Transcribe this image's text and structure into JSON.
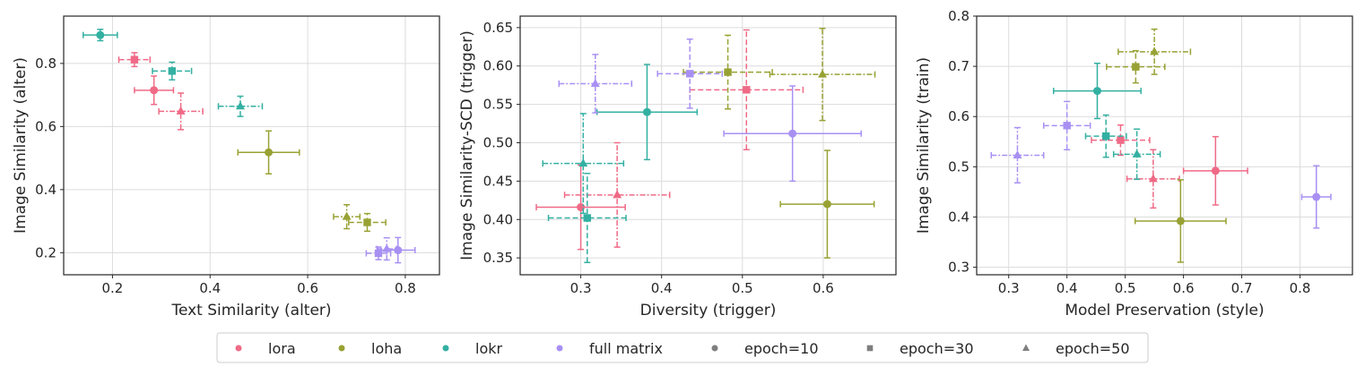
{
  "colors": {
    "lora": "#ef6a86",
    "loha": "#98a234",
    "lokr": "#33b0a2",
    "full matrix": "#a890f3",
    "grid": "#dcdcdc",
    "frame": "#262626",
    "legend_marker": "#7f7f7f"
  },
  "legend": {
    "items": [
      {
        "label": "lora",
        "kind": "method",
        "key": "lora"
      },
      {
        "label": "loha",
        "kind": "method",
        "key": "loha"
      },
      {
        "label": "lokr",
        "kind": "method",
        "key": "lokr"
      },
      {
        "label": "full matrix",
        "kind": "method",
        "key": "full matrix"
      },
      {
        "label": "epoch=10",
        "kind": "epoch",
        "marker": "circle"
      },
      {
        "label": "epoch=30",
        "kind": "epoch",
        "marker": "square"
      },
      {
        "label": "epoch=50",
        "kind": "epoch",
        "marker": "triangle"
      }
    ]
  },
  "chart_data": [
    {
      "type": "scatter",
      "xlabel": "Text Similarity (alter)",
      "ylabel": "Image Similarity (alter)",
      "xlim": [
        0.1,
        0.87
      ],
      "ylim": [
        0.13,
        0.95
      ],
      "xticks": [
        0.2,
        0.4,
        0.6,
        0.8
      ],
      "xtick_labels": [
        "0.2",
        "0.4",
        "0.6",
        "0.8"
      ],
      "yticks": [
        0.2,
        0.4,
        0.6,
        0.8
      ],
      "ytick_labels": [
        "0.2",
        "0.4",
        "0.6",
        "0.8"
      ],
      "grid": true,
      "points": [
        {
          "method": "lora",
          "epoch": 10,
          "x": 0.285,
          "y": 0.715,
          "xerr": 0.04,
          "yerr": 0.045
        },
        {
          "method": "lora",
          "epoch": 30,
          "x": 0.245,
          "y": 0.812,
          "xerr": 0.032,
          "yerr": 0.022
        },
        {
          "method": "lora",
          "epoch": 50,
          "x": 0.34,
          "y": 0.648,
          "xerr": 0.045,
          "yerr": 0.058
        },
        {
          "method": "loha",
          "epoch": 10,
          "x": 0.52,
          "y": 0.518,
          "xerr": 0.063,
          "yerr": 0.068
        },
        {
          "method": "loha",
          "epoch": 30,
          "x": 0.722,
          "y": 0.296,
          "xerr": 0.038,
          "yerr": 0.028
        },
        {
          "method": "loha",
          "epoch": 50,
          "x": 0.68,
          "y": 0.314,
          "xerr": 0.027,
          "yerr": 0.038
        },
        {
          "method": "lokr",
          "epoch": 10,
          "x": 0.175,
          "y": 0.89,
          "xerr": 0.035,
          "yerr": 0.018
        },
        {
          "method": "lokr",
          "epoch": 30,
          "x": 0.322,
          "y": 0.776,
          "xerr": 0.04,
          "yerr": 0.028
        },
        {
          "method": "lokr",
          "epoch": 50,
          "x": 0.462,
          "y": 0.664,
          "xerr": 0.045,
          "yerr": 0.032
        },
        {
          "method": "full matrix",
          "epoch": 10,
          "x": 0.785,
          "y": 0.208,
          "xerr": 0.035,
          "yerr": 0.04
        },
        {
          "method": "full matrix",
          "epoch": 30,
          "x": 0.745,
          "y": 0.198,
          "xerr": 0.025,
          "yerr": 0.02
        },
        {
          "method": "full matrix",
          "epoch": 50,
          "x": 0.762,
          "y": 0.212,
          "xerr": 0.02,
          "yerr": 0.035
        }
      ]
    },
    {
      "type": "scatter",
      "xlabel": "Diversity (trigger)",
      "ylabel": "Image Similarity-SCD (trigger)",
      "xlim": [
        0.225,
        0.69
      ],
      "ylim": [
        0.328,
        0.665
      ],
      "xticks": [
        0.3,
        0.4,
        0.5,
        0.6
      ],
      "xtick_labels": [
        "0.3",
        "0.4",
        "0.5",
        "0.6"
      ],
      "yticks": [
        0.35,
        0.4,
        0.45,
        0.5,
        0.55,
        0.6,
        0.65
      ],
      "ytick_labels": [
        "0.35",
        "0.40",
        "0.45",
        "0.50",
        "0.55",
        "0.60",
        "0.65"
      ],
      "grid": true,
      "points": [
        {
          "method": "lora",
          "epoch": 10,
          "x": 0.3,
          "y": 0.416,
          "xerr": 0.055,
          "yerr": 0.055
        },
        {
          "method": "lora",
          "epoch": 30,
          "x": 0.505,
          "y": 0.569,
          "xerr": 0.07,
          "yerr": 0.078
        },
        {
          "method": "lora",
          "epoch": 50,
          "x": 0.345,
          "y": 0.432,
          "xerr": 0.065,
          "yerr": 0.068
        },
        {
          "method": "loha",
          "epoch": 10,
          "x": 0.605,
          "y": 0.42,
          "xerr": 0.058,
          "yerr": 0.07
        },
        {
          "method": "loha",
          "epoch": 30,
          "x": 0.482,
          "y": 0.592,
          "xerr": 0.055,
          "yerr": 0.048
        },
        {
          "method": "loha",
          "epoch": 50,
          "x": 0.599,
          "y": 0.589,
          "xerr": 0.065,
          "yerr": 0.06
        },
        {
          "method": "lokr",
          "epoch": 10,
          "x": 0.382,
          "y": 0.54,
          "xerr": 0.062,
          "yerr": 0.062
        },
        {
          "method": "lokr",
          "epoch": 30,
          "x": 0.308,
          "y": 0.402,
          "xerr": 0.048,
          "yerr": 0.058
        },
        {
          "method": "lokr",
          "epoch": 50,
          "x": 0.303,
          "y": 0.473,
          "xerr": 0.05,
          "yerr": 0.065
        },
        {
          "method": "full matrix",
          "epoch": 10,
          "x": 0.562,
          "y": 0.512,
          "xerr": 0.085,
          "yerr": 0.062
        },
        {
          "method": "full matrix",
          "epoch": 30,
          "x": 0.435,
          "y": 0.59,
          "xerr": 0.04,
          "yerr": 0.045
        },
        {
          "method": "full matrix",
          "epoch": 50,
          "x": 0.318,
          "y": 0.577,
          "xerr": 0.045,
          "yerr": 0.038
        }
      ]
    },
    {
      "type": "scatter",
      "xlabel": "Model Preservation (style)",
      "ylabel": "Image Similarity (train)",
      "xlim": [
        0.245,
        0.89
      ],
      "ylim": [
        0.285,
        0.8
      ],
      "xticks": [
        0.3,
        0.4,
        0.5,
        0.6,
        0.7,
        0.8
      ],
      "xtick_labels": [
        "0.3",
        "0.4",
        "0.5",
        "0.6",
        "0.7",
        "0.8"
      ],
      "yticks": [
        0.3,
        0.4,
        0.5,
        0.6,
        0.7,
        0.8
      ],
      "ytick_labels": [
        "0.3",
        "0.4",
        "0.5",
        "0.6",
        "0.7",
        "0.8"
      ],
      "grid": true,
      "points": [
        {
          "method": "lora",
          "epoch": 10,
          "x": 0.655,
          "y": 0.492,
          "xerr": 0.055,
          "yerr": 0.068
        },
        {
          "method": "lora",
          "epoch": 30,
          "x": 0.492,
          "y": 0.553,
          "xerr": 0.05,
          "yerr": 0.03
        },
        {
          "method": "lora",
          "epoch": 50,
          "x": 0.548,
          "y": 0.476,
          "xerr": 0.045,
          "yerr": 0.058
        },
        {
          "method": "loha",
          "epoch": 10,
          "x": 0.595,
          "y": 0.392,
          "xerr": 0.078,
          "yerr": 0.082
        },
        {
          "method": "loha",
          "epoch": 30,
          "x": 0.518,
          "y": 0.699,
          "xerr": 0.05,
          "yerr": 0.032
        },
        {
          "method": "loha",
          "epoch": 50,
          "x": 0.55,
          "y": 0.729,
          "xerr": 0.062,
          "yerr": 0.045
        },
        {
          "method": "lokr",
          "epoch": 10,
          "x": 0.452,
          "y": 0.651,
          "xerr": 0.075,
          "yerr": 0.055
        },
        {
          "method": "lokr",
          "epoch": 30,
          "x": 0.467,
          "y": 0.561,
          "xerr": 0.035,
          "yerr": 0.042
        },
        {
          "method": "lokr",
          "epoch": 50,
          "x": 0.52,
          "y": 0.525,
          "xerr": 0.04,
          "yerr": 0.05
        },
        {
          "method": "full matrix",
          "epoch": 10,
          "x": 0.828,
          "y": 0.44,
          "xerr": 0.025,
          "yerr": 0.062
        },
        {
          "method": "full matrix",
          "epoch": 30,
          "x": 0.4,
          "y": 0.582,
          "xerr": 0.04,
          "yerr": 0.048
        },
        {
          "method": "full matrix",
          "epoch": 50,
          "x": 0.315,
          "y": 0.523,
          "xerr": 0.045,
          "yerr": 0.055
        }
      ]
    }
  ]
}
